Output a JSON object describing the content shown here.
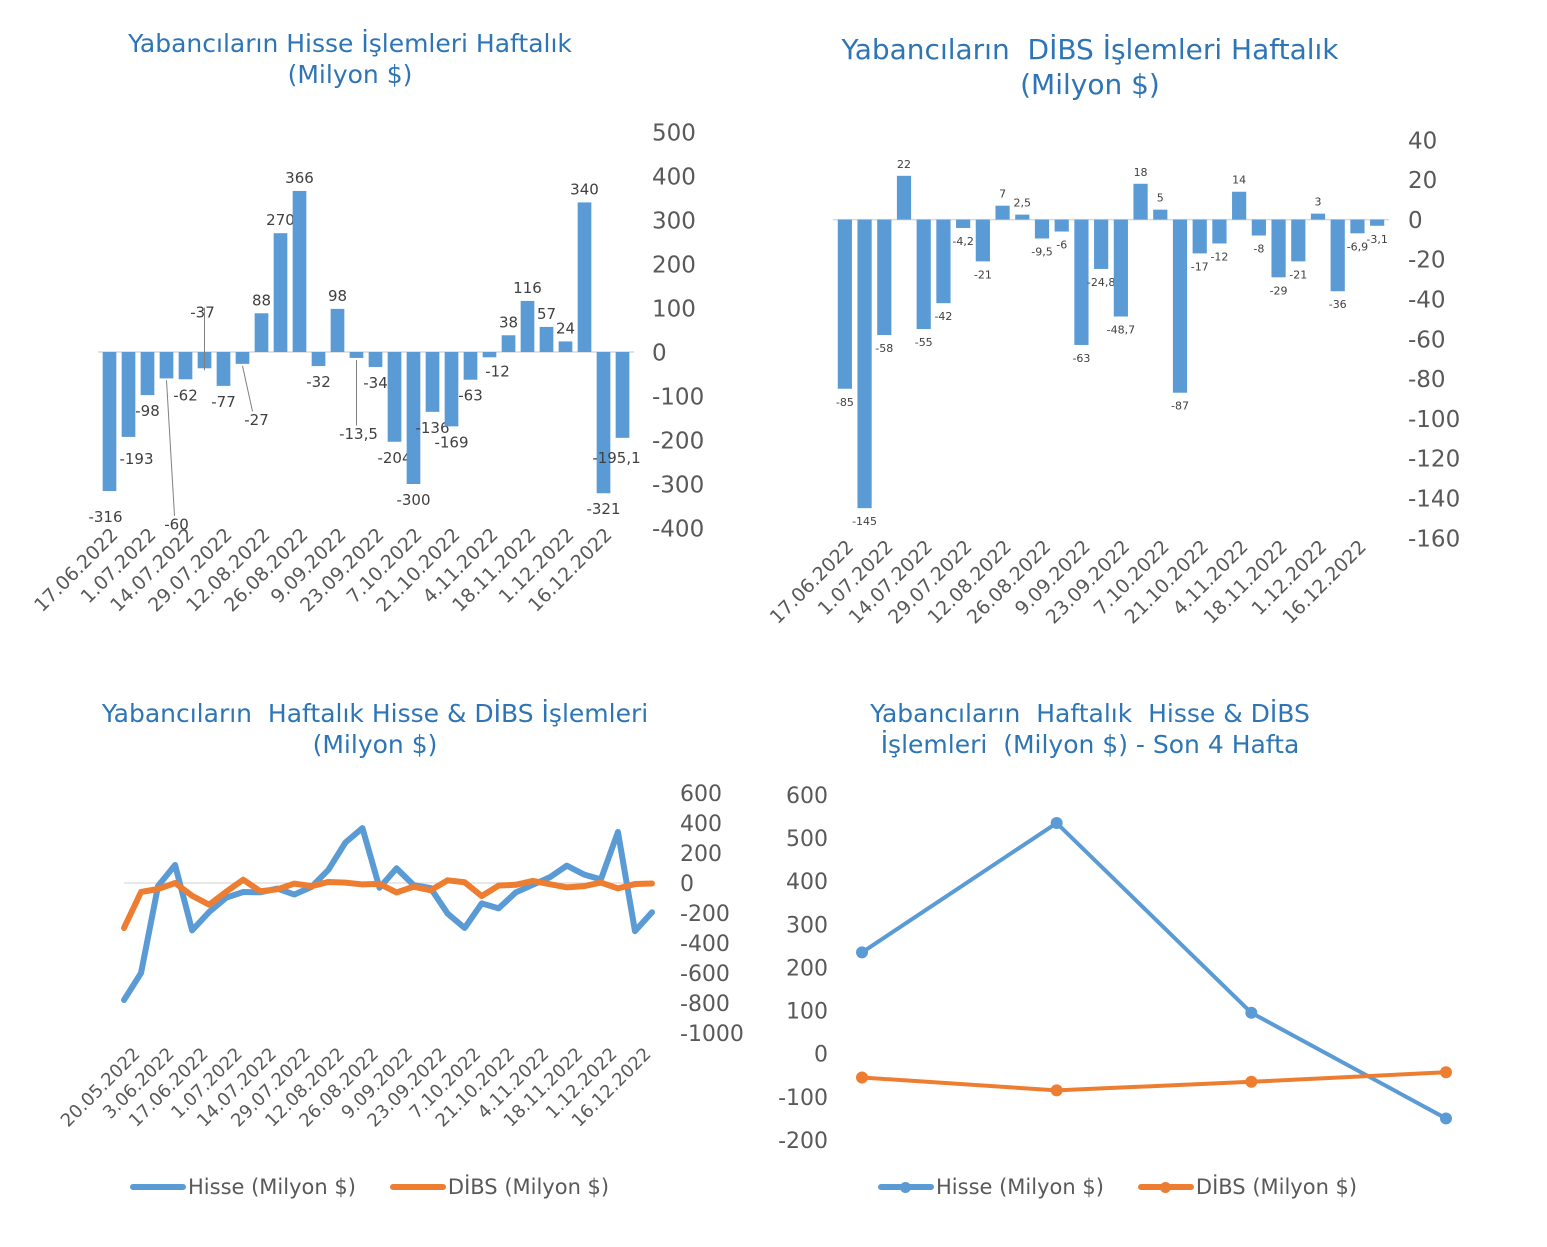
{
  "colors": {
    "hisse": "#5b9bd5",
    "dibs": "#ed7d31",
    "title": "#2e75b6",
    "text": "#595959",
    "axis": "#d9d9d9"
  },
  "chart_data": [
    {
      "id": "c1",
      "type": "bar",
      "title_line1": "Yabancıların Hisse İşlemleri Haftalık",
      "title_line2": "(Milyon $)",
      "ylim": [
        -400,
        500
      ],
      "ytick_values": [
        500,
        400,
        300,
        200,
        100,
        0,
        -100,
        -200,
        -300,
        -400
      ],
      "y_ticks": [
        "500",
        "400",
        "300",
        "200",
        "100",
        "0",
        "-100",
        "-200",
        "-300",
        "-400"
      ],
      "x_tick_labels": [
        "17.06.2022",
        "1.07.2022",
        "14.07.2022",
        "29.07.2022",
        "12.08.2022",
        "26.08.2022",
        "9.09.2022",
        "23.09.2022",
        "7.10.2022",
        "21.10.2022",
        "4.11.2022",
        "18.11.2022",
        "1.12.2022",
        "16.12.2022"
      ],
      "values": [
        -316,
        -193,
        -98,
        -60,
        -62,
        -37,
        -77,
        -27,
        88,
        270,
        366,
        -32,
        98,
        -13.5,
        -34,
        -204,
        -300,
        -136,
        -169,
        -63,
        -12,
        38,
        116,
        57,
        24,
        340,
        -321,
        -195.1
      ],
      "labels": [
        "-316",
        "-193",
        "-98",
        "-60",
        "-62",
        "-37",
        "-77",
        "-27",
        "88",
        "270",
        "366",
        "-32",
        "98",
        "-13,5",
        "-34",
        "-204",
        "-300",
        "-136",
        "-169",
        "-63",
        "-12",
        "38",
        "116",
        "57",
        "24",
        "340",
        "-321",
        "-195,1"
      ]
    },
    {
      "id": "c2",
      "type": "bar",
      "title_line1": "Yabancıların  DİBS İşlemleri Haftalık",
      "title_line2": "(Milyon $)",
      "ylim": [
        -160,
        40
      ],
      "ytick_values": [
        40,
        20,
        0,
        -20,
        -40,
        -60,
        -80,
        -100,
        -120,
        -140,
        -160
      ],
      "y_ticks": [
        "40",
        "20",
        "0",
        "-20",
        "-40",
        "-60",
        "-80",
        "-100",
        "-120",
        "-140",
        "-160"
      ],
      "x_tick_labels": [
        "17.06.2022",
        "1.07.2022",
        "14.07.2022",
        "29.07.2022",
        "12.08.2022",
        "26.08.2022",
        "9.09.2022",
        "23.09.2022",
        "7.10.2022",
        "21.10.2022",
        "4.11.2022",
        "18.11.2022",
        "1.12.2022",
        "16.12.2022"
      ],
      "values": [
        -85,
        -145,
        -58,
        22,
        -55,
        -42,
        -4.2,
        -21,
        7,
        2.5,
        -9.5,
        -6,
        -63,
        -24.8,
        -48.7,
        18,
        5,
        -87,
        -17,
        -12,
        14,
        -8,
        -29,
        -21,
        3,
        -36,
        -6.9,
        -3.1
      ],
      "labels": [
        "-85",
        "-145",
        "-58",
        "22",
        "-55",
        "-42",
        "-4,2",
        "-21",
        "7",
        "2,5",
        "-9,5",
        "-6",
        "-63",
        "-24,8",
        "-48,7",
        "18",
        "5",
        "-87",
        "-17",
        "-12",
        "14",
        "-8",
        "-29",
        "-21",
        "3",
        "-36",
        "-6,9",
        "-3,1"
      ]
    },
    {
      "id": "c3",
      "type": "line",
      "title_line1": "Yabancıların  Haftalık Hisse & DİBS İşlemleri",
      "title_line2": "(Milyon $)",
      "ylim": [
        -1000,
        600
      ],
      "ytick_values": [
        600,
        400,
        200,
        0,
        -200,
        -400,
        -600,
        -800,
        -1000
      ],
      "y_ticks": [
        "600",
        "400",
        "200",
        "0",
        "-200",
        "-400",
        "-600",
        "-800",
        "-1000"
      ],
      "x_tick_labels": [
        "20.05.2022",
        "3.06.2022",
        "17.06.2022",
        "1.07.2022",
        "14.07.2022",
        "29.07.2022",
        "12.08.2022",
        "26.08.2022",
        "9.09.2022",
        "23.09.2022",
        "7.10.2022",
        "21.10.2022",
        "4.11.2022",
        "18.11.2022",
        "1.12.2022",
        "16.12.2022"
      ],
      "series": [
        {
          "name": "Hisse (Milyon $)",
          "values": [
            -780,
            -600,
            -20,
            120,
            -316,
            -193,
            -98,
            -60,
            -62,
            -37,
            -77,
            -27,
            88,
            270,
            366,
            -32,
            98,
            -13.5,
            -34,
            -204,
            -300,
            -136,
            -169,
            -63,
            -12,
            38,
            116,
            57,
            24,
            340,
            -321,
            -195.1
          ]
        },
        {
          "name": "DİBS (Milyon $)",
          "values": [
            -300,
            -60,
            -40,
            0,
            -85,
            -145,
            -58,
            22,
            -55,
            -42,
            -4.2,
            -21,
            7,
            2.5,
            -9.5,
            -6,
            -63,
            -24.8,
            -48.7,
            18,
            5,
            -87,
            -17,
            -12,
            14,
            -8,
            -29,
            -21,
            3,
            -36,
            -6.9,
            -3.1
          ]
        }
      ]
    },
    {
      "id": "c4",
      "type": "line",
      "title_line1": "Yabancıların  Haftalık  Hisse & DİBS",
      "title_line2": "İşlemleri  (Milyon $) - Son 4 Hafta",
      "ylim": [
        -200,
        600
      ],
      "ytick_values": [
        600,
        500,
        400,
        300,
        200,
        100,
        0,
        -100,
        -200
      ],
      "y_ticks": [
        "600",
        "500",
        "400",
        "300",
        "200",
        "100",
        "0",
        "-100",
        "-200"
      ],
      "series": [
        {
          "name": "Hisse (Milyon $)",
          "values": [
            235,
            535,
            95,
            -150
          ]
        },
        {
          "name": "DİBS (Milyon $)",
          "values": [
            -55,
            -85,
            -65,
            -43
          ]
        }
      ]
    }
  ]
}
